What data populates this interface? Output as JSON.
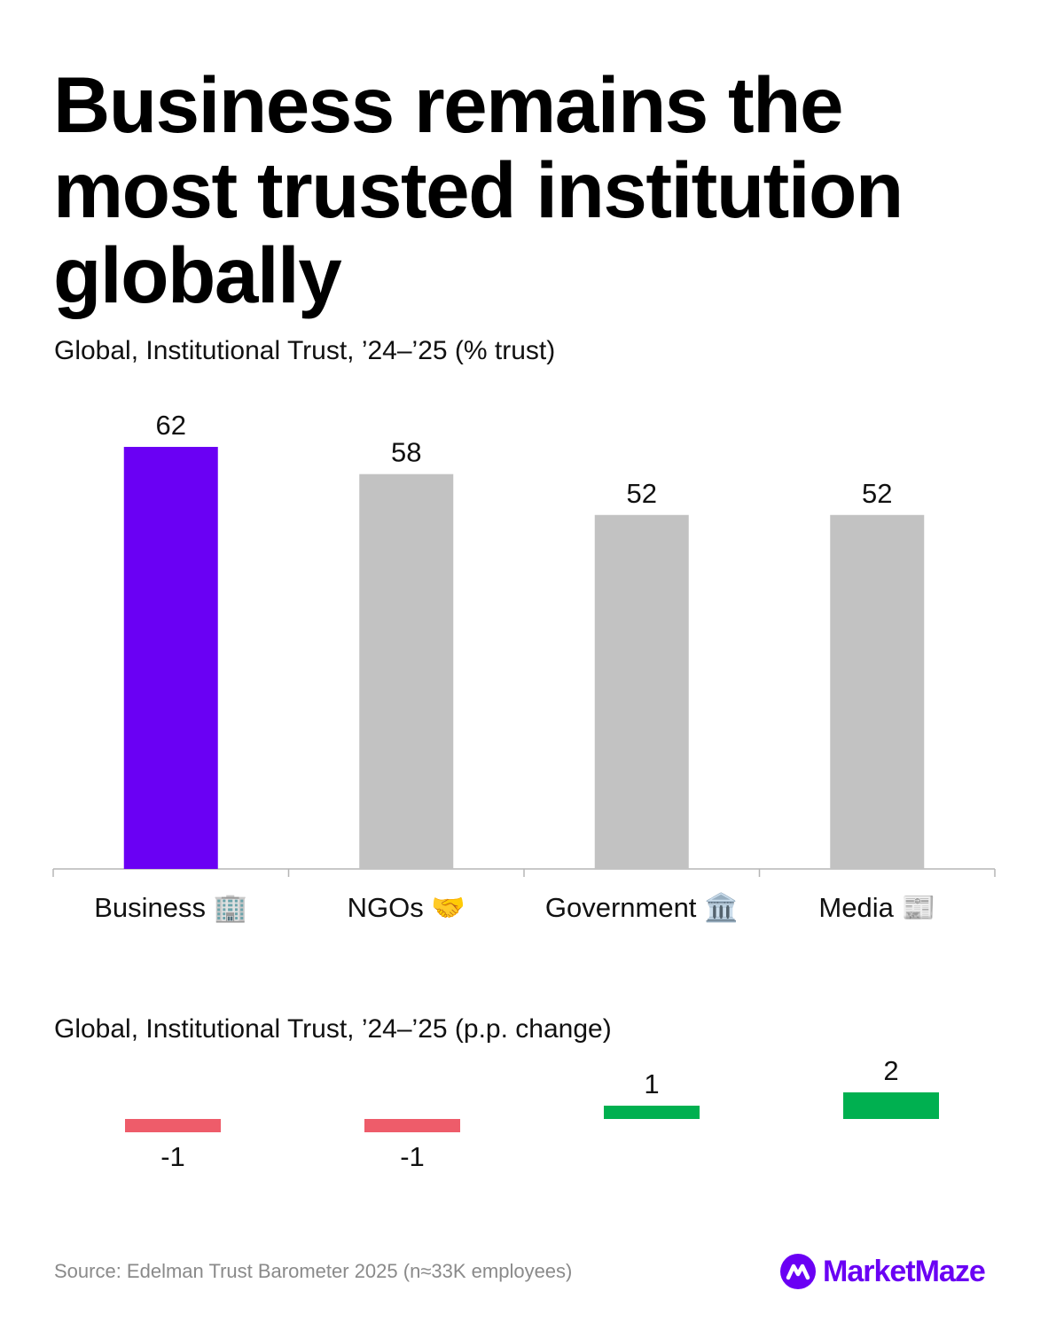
{
  "title": "Business remains the most trusted institution globally",
  "logo": {
    "text": "MarketMaze"
  },
  "source": "Source: Edelman Trust Barometer 2025 (n≈33K employees)",
  "colors": {
    "highlight": "#6a00f4",
    "neutral": "#c2c2c2",
    "negative": "#ee5c6a",
    "positive": "#00b050"
  },
  "chart_data": [
    {
      "type": "bar",
      "title": "Global, Institutional Trust, ’24–’25 (% trust)",
      "categories": [
        "Business 🏢",
        "NGOs 🤝",
        "Government 🏛️",
        "Media 📰"
      ],
      "values": [
        62,
        58,
        52,
        52
      ],
      "highlight_index": 0,
      "ylim": [
        0,
        62
      ],
      "grid": false
    },
    {
      "type": "bar",
      "title": "Global, Institutional Trust, ’24–’25 (p.p. change)",
      "categories": [
        "Business 🏢",
        "NGOs 🤝",
        "Government 🏛️",
        "Media 📰"
      ],
      "values": [
        -1,
        -1,
        1,
        2
      ],
      "labels": [
        "-1",
        "-1",
        "1",
        "2"
      ],
      "grid": false
    }
  ]
}
